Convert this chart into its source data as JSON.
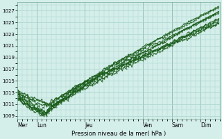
{
  "xlabel": "Pression niveau de la mer( hPa )",
  "ylim": [
    1008.5,
    1028.5
  ],
  "yticks": [
    1009,
    1011,
    1013,
    1015,
    1017,
    1019,
    1021,
    1023,
    1025,
    1027
  ],
  "day_labels": [
    "Mer",
    "Lun",
    "Jeu",
    "Ven",
    "Sam",
    "Dim"
  ],
  "day_positions": [
    0,
    16,
    56,
    104,
    128,
    152
  ],
  "xlim": [
    0,
    168
  ],
  "bg_color": "#d4eeea",
  "grid_color": "#a8d4cc",
  "line_color": "#1a5c1a",
  "n_steps": 168
}
